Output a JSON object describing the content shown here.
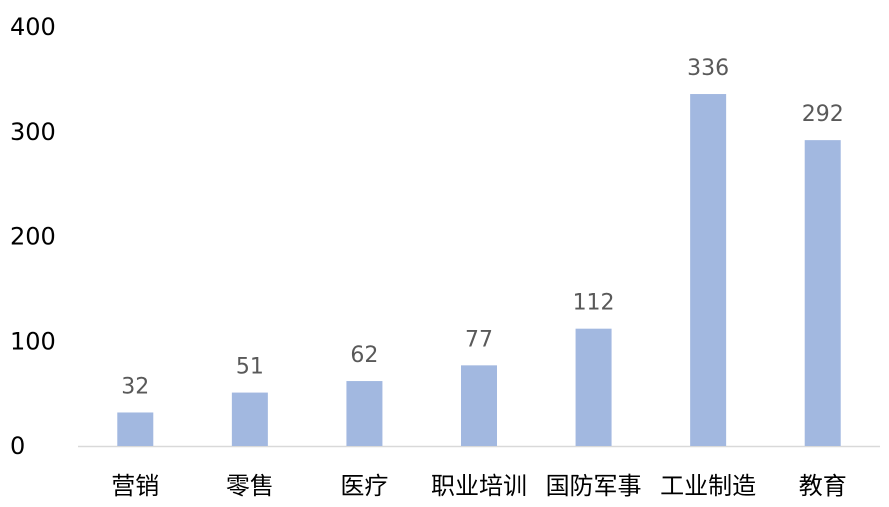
{
  "chart_data": {
    "type": "bar",
    "categories": [
      "营销",
      "零售",
      "医疗",
      "职业培训",
      "国防军事",
      "工业制造",
      "教育"
    ],
    "values": [
      32,
      51,
      62,
      77,
      112,
      336,
      292
    ],
    "data_labels": [
      "32",
      "51",
      "62",
      "77",
      "112",
      "336",
      "292"
    ],
    "y_ticks": [
      "0",
      "100",
      "200",
      "300",
      "400"
    ],
    "ylim": [
      0,
      400
    ],
    "title": "",
    "xlabel": "",
    "ylabel": "",
    "grid": false,
    "legend": "none",
    "colors": {
      "bar": "#A2B8E0",
      "axis_line": "#D9D9D9",
      "tick_text": "#000000",
      "data_label_text": "#595959"
    }
  }
}
